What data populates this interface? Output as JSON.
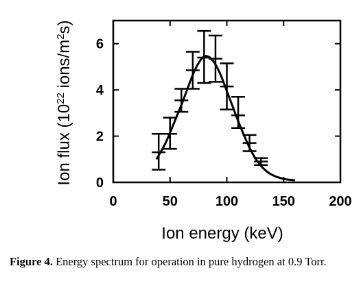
{
  "chart_data": {
    "type": "line",
    "xlabel": "Ion energy (keV)",
    "ylabel": "Ion flux (10²² ions/m²s)",
    "xlim": [
      0,
      200
    ],
    "ylim": [
      0,
      7
    ],
    "xticks": [
      0,
      50,
      100,
      150,
      200
    ],
    "yticks": [
      0,
      2,
      4,
      6
    ],
    "grid": false,
    "points": [
      {
        "x": 40,
        "y": 1.3,
        "err_low": 0.55,
        "err_high": 2.1
      },
      {
        "x": 50,
        "y": 2.1,
        "err_low": 1.45,
        "err_high": 2.8
      },
      {
        "x": 60,
        "y": 3.55,
        "err_low": 3.05,
        "err_high": 4.05
      },
      {
        "x": 70,
        "y": 4.85,
        "err_low": 4.05,
        "err_high": 5.65
      },
      {
        "x": 80,
        "y": 5.4,
        "err_low": 4.3,
        "err_high": 6.55
      },
      {
        "x": 90,
        "y": 5.35,
        "err_low": 4.35,
        "err_high": 6.35
      },
      {
        "x": 100,
        "y": 4.15,
        "err_low": 3.15,
        "err_high": 5.15
      },
      {
        "x": 110,
        "y": 2.9,
        "err_low": 2.35,
        "err_high": 3.7
      },
      {
        "x": 120,
        "y": 1.7,
        "err_low": 1.35,
        "err_high": 2.05
      },
      {
        "x": 130,
        "y": 0.9,
        "err_low": 0.75,
        "err_high": 1.05
      }
    ],
    "fit_curve": {
      "x": [
        38,
        45,
        50,
        55,
        60,
        65,
        70,
        75,
        80,
        85,
        90,
        95,
        100,
        105,
        110,
        115,
        120,
        125,
        130,
        135,
        140,
        145,
        150,
        155,
        160
      ],
      "y": [
        1.0,
        1.6,
        2.15,
        2.75,
        3.35,
        4.0,
        4.65,
        5.15,
        5.45,
        5.4,
        5.1,
        4.6,
        3.95,
        3.3,
        2.65,
        2.05,
        1.5,
        1.05,
        0.72,
        0.48,
        0.32,
        0.22,
        0.15,
        0.11,
        0.09
      ]
    }
  },
  "caption": {
    "label": "Figure 4.",
    "text": "Energy spectrum for operation in pure hydrogen at 0.9 Torr."
  }
}
